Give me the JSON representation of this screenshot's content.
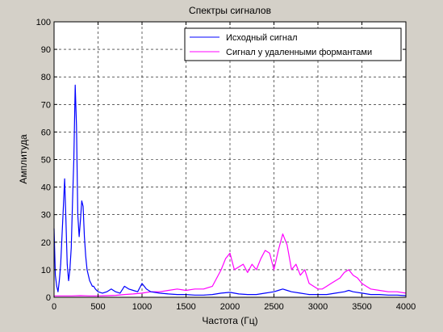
{
  "chart_data": {
    "type": "line",
    "title": "Спектры сигналов",
    "xlabel": "Частота (Гц)",
    "ylabel": "Амплитуда",
    "xlim": [
      0,
      4000
    ],
    "ylim": [
      0,
      100
    ],
    "xticks": [
      0,
      500,
      1000,
      1500,
      2000,
      2500,
      3000,
      3500,
      4000
    ],
    "yticks": [
      0,
      10,
      20,
      30,
      40,
      50,
      60,
      70,
      80,
      90,
      100
    ],
    "grid": true,
    "grid_style": "dashed",
    "legend_position": "top-right",
    "series": [
      {
        "name": "Исходный сигнал",
        "color": "#0000ff",
        "x": [
          0,
          15,
          30,
          45,
          60,
          75,
          90,
          105,
          120,
          135,
          150,
          165,
          180,
          195,
          210,
          225,
          240,
          255,
          270,
          285,
          300,
          315,
          330,
          345,
          360,
          375,
          390,
          405,
          420,
          435,
          450,
          470,
          500,
          550,
          600,
          650,
          700,
          750,
          800,
          850,
          900,
          950,
          1000,
          1050,
          1100,
          1200,
          1300,
          1400,
          1500,
          1600,
          1700,
          1800,
          1900,
          2000,
          2100,
          2200,
          2300,
          2400,
          2500,
          2550,
          2600,
          2650,
          2700,
          2800,
          2900,
          3000,
          3100,
          3200,
          3300,
          3350,
          3400,
          3500,
          3600,
          3700,
          3800,
          3900,
          4000
        ],
        "y": [
          25,
          8,
          4,
          2,
          6,
          12,
          22,
          32,
          43,
          28,
          12,
          6,
          10,
          18,
          35,
          50,
          77,
          62,
          30,
          22,
          28,
          35,
          33,
          22,
          15,
          10,
          8,
          6,
          5,
          4,
          4,
          3,
          2,
          1.5,
          2,
          3,
          2,
          1.5,
          4,
          3,
          2.5,
          2,
          5,
          3,
          2,
          1.5,
          1.2,
          1,
          1,
          0.8,
          0.8,
          1,
          1.5,
          1.8,
          1.2,
          1,
          1,
          1.5,
          2,
          2.5,
          3,
          2.5,
          2,
          1.5,
          1,
          1,
          1,
          1.5,
          2,
          2.5,
          2,
          1.5,
          1,
          1,
          0.8,
          0.8,
          0.6
        ]
      },
      {
        "name": "Сигнал у удаленными формантами",
        "color": "#ff00ff",
        "x": [
          0,
          100,
          200,
          300,
          400,
          500,
          600,
          700,
          800,
          900,
          1000,
          1100,
          1200,
          1300,
          1400,
          1500,
          1600,
          1700,
          1800,
          1900,
          1950,
          2000,
          2050,
          2100,
          2150,
          2200,
          2250,
          2300,
          2350,
          2400,
          2450,
          2500,
          2550,
          2600,
          2650,
          2700,
          2750,
          2800,
          2850,
          2900,
          2950,
          3000,
          3050,
          3100,
          3150,
          3200,
          3250,
          3300,
          3350,
          3400,
          3450,
          3500,
          3550,
          3600,
          3700,
          3800,
          3900,
          4000
        ],
        "y": [
          0.5,
          0.5,
          0.5,
          0.6,
          0.5,
          0.5,
          0.6,
          0.7,
          1,
          1.2,
          1.5,
          2,
          2,
          2.5,
          3,
          2.5,
          3,
          3,
          4,
          10,
          14,
          16,
          10,
          11,
          12,
          9,
          12,
          10,
          14,
          17,
          16,
          10,
          17,
          23,
          19,
          10,
          12,
          8,
          10,
          5,
          4,
          3,
          3,
          4,
          5,
          6,
          7,
          9,
          10,
          8,
          7,
          5,
          4,
          3,
          2.5,
          2,
          2,
          1.5
        ]
      }
    ]
  }
}
